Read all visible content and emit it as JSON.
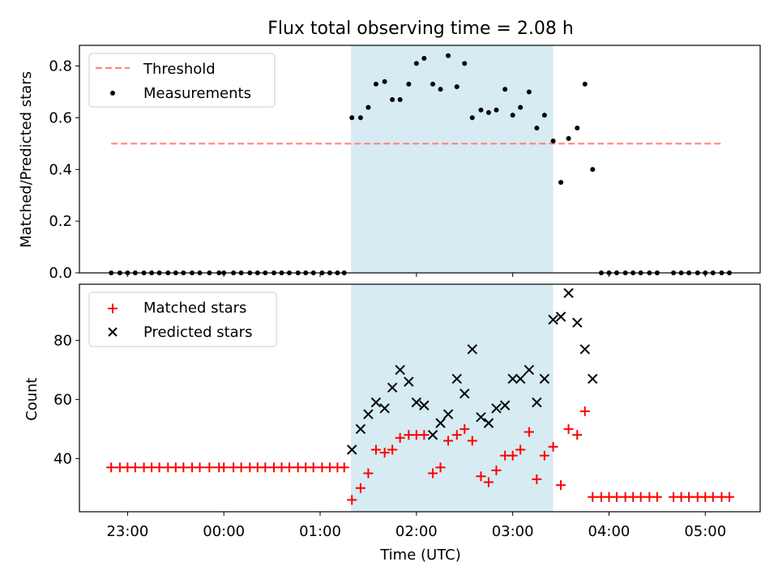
{
  "title": "Flux total observing time = 2.08 h",
  "colors": {
    "threshold": "#ff7f7f",
    "measurement": "#000000",
    "matched": "#ff0000",
    "predicted": "#000000",
    "shade": "#add8e6"
  },
  "chart_data": [
    {
      "type": "scatter",
      "ylabel": "Matched/Predicted stars",
      "ylim": [
        0,
        0.88
      ],
      "yticks": [
        0.0,
        0.2,
        0.4,
        0.6,
        0.8
      ],
      "ytick_labels": [
        "0.0",
        "0.2",
        "0.4",
        "0.6",
        "0.8"
      ],
      "xlim_hours": [
        -1.5,
        5.57
      ],
      "shaded_interval_hours": [
        1.32,
        3.42
      ],
      "legend": {
        "position": "top-left",
        "entries": [
          "Threshold",
          "Measurements"
        ]
      },
      "threshold": {
        "name": "Threshold",
        "value": 0.5,
        "x_range_hours": [
          -1.17,
          5.17
        ]
      },
      "series": [
        {
          "name": "Measurements",
          "x": [
            -1.17,
            -1.08,
            -1.0,
            -0.92,
            -0.83,
            -0.75,
            -0.67,
            -0.58,
            -0.5,
            -0.42,
            -0.33,
            -0.25,
            -0.15,
            -0.05,
            0.0,
            0.1,
            0.18,
            0.27,
            0.35,
            0.43,
            0.52,
            0.6,
            0.68,
            0.77,
            0.85,
            0.93,
            1.02,
            1.1,
            1.18,
            1.25,
            1.33,
            1.42,
            1.5,
            1.58,
            1.67,
            1.75,
            1.83,
            1.92,
            2.0,
            2.08,
            2.17,
            2.25,
            2.33,
            2.42,
            2.5,
            2.58,
            2.67,
            2.75,
            2.83,
            2.92,
            3.0,
            3.08,
            3.17,
            3.25,
            3.33,
            3.42,
            3.5,
            3.58,
            3.67,
            3.75,
            3.83,
            3.92,
            4.0,
            4.08,
            4.17,
            4.25,
            4.33,
            4.42,
            4.5,
            4.67,
            4.75,
            4.83,
            4.92,
            5.0,
            5.08,
            5.17,
            5.25
          ],
          "y": [
            0,
            0,
            0,
            0,
            0,
            0,
            0,
            0,
            0,
            0,
            0,
            0,
            0,
            0,
            0,
            0,
            0,
            0,
            0,
            0,
            0,
            0,
            0,
            0,
            0,
            0,
            0,
            0,
            0,
            0,
            0.6,
            0.6,
            0.64,
            0.73,
            0.74,
            0.67,
            0.67,
            0.73,
            0.81,
            0.83,
            0.73,
            0.71,
            0.84,
            0.72,
            0.81,
            0.6,
            0.63,
            0.62,
            0.63,
            0.71,
            0.61,
            0.64,
            0.7,
            0.56,
            0.61,
            0.51,
            0.35,
            0.52,
            0.56,
            0.73,
            0.4,
            0,
            0,
            0,
            0,
            0,
            0,
            0,
            0,
            0,
            0,
            0,
            0,
            0,
            0,
            0,
            0
          ]
        }
      ]
    },
    {
      "type": "scatter",
      "title": "",
      "xlabel": "Time (UTC)",
      "ylabel": "Count",
      "ylim": [
        22,
        99
      ],
      "yticks": [
        40,
        60,
        80
      ],
      "ytick_labels": [
        "40",
        "60",
        "80"
      ],
      "xlim_hours": [
        -1.5,
        5.57
      ],
      "xticks_hours": [
        -1,
        0,
        1,
        2,
        3,
        4,
        5
      ],
      "xtick_labels": [
        "23:00",
        "00:00",
        "01:00",
        "02:00",
        "03:00",
        "04:00",
        "05:00"
      ],
      "shaded_interval_hours": [
        1.32,
        3.42
      ],
      "legend": {
        "position": "top-left",
        "entries": [
          "Matched stars",
          "Predicted stars"
        ]
      },
      "series": [
        {
          "name": "Matched stars",
          "marker": "plus",
          "x": [
            -1.17,
            -1.08,
            -1.0,
            -0.92,
            -0.83,
            -0.75,
            -0.67,
            -0.58,
            -0.5,
            -0.42,
            -0.33,
            -0.25,
            -0.15,
            -0.05,
            0.0,
            0.1,
            0.18,
            0.27,
            0.35,
            0.43,
            0.52,
            0.6,
            0.68,
            0.77,
            0.85,
            0.93,
            1.02,
            1.1,
            1.18,
            1.25,
            1.33,
            1.42,
            1.5,
            1.58,
            1.67,
            1.75,
            1.83,
            1.92,
            2.0,
            2.08,
            2.17,
            2.25,
            2.33,
            2.42,
            2.5,
            2.58,
            2.67,
            2.75,
            2.83,
            2.92,
            3.0,
            3.08,
            3.17,
            3.25,
            3.33,
            3.42,
            3.5,
            3.58,
            3.67,
            3.75,
            3.83,
            3.92,
            4.0,
            4.08,
            4.17,
            4.25,
            4.33,
            4.42,
            4.5,
            4.67,
            4.75,
            4.83,
            4.92,
            5.0,
            5.08,
            5.17,
            5.25
          ],
          "y": [
            37,
            37,
            37,
            37,
            37,
            37,
            37,
            37,
            37,
            37,
            37,
            37,
            37,
            37,
            37,
            37,
            37,
            37,
            37,
            37,
            37,
            37,
            37,
            37,
            37,
            37,
            37,
            37,
            37,
            37,
            26,
            30,
            35,
            43,
            42,
            43,
            47,
            48,
            48,
            48,
            35,
            37,
            46,
            48,
            50,
            46,
            34,
            32,
            36,
            41,
            41,
            43,
            49,
            33,
            41,
            44,
            31,
            50,
            48,
            56,
            27,
            27,
            27,
            27,
            27,
            27,
            27,
            27,
            27,
            27,
            27,
            27,
            27,
            27,
            27,
            27,
            27
          ]
        },
        {
          "name": "Predicted stars",
          "marker": "x",
          "x": [
            1.33,
            1.42,
            1.5,
            1.58,
            1.67,
            1.75,
            1.83,
            1.92,
            2.0,
            2.08,
            2.17,
            2.25,
            2.33,
            2.42,
            2.5,
            2.58,
            2.67,
            2.75,
            2.83,
            2.92,
            3.0,
            3.08,
            3.17,
            3.25,
            3.33,
            3.42,
            3.5,
            3.58,
            3.67,
            3.75,
            3.83
          ],
          "y": [
            43,
            50,
            55,
            59,
            57,
            64,
            70,
            66,
            59,
            58,
            48,
            52,
            55,
            67,
            62,
            77,
            54,
            52,
            57,
            58,
            67,
            67,
            70,
            59,
            67,
            87,
            88,
            96,
            86,
            77,
            67
          ]
        }
      ]
    }
  ]
}
